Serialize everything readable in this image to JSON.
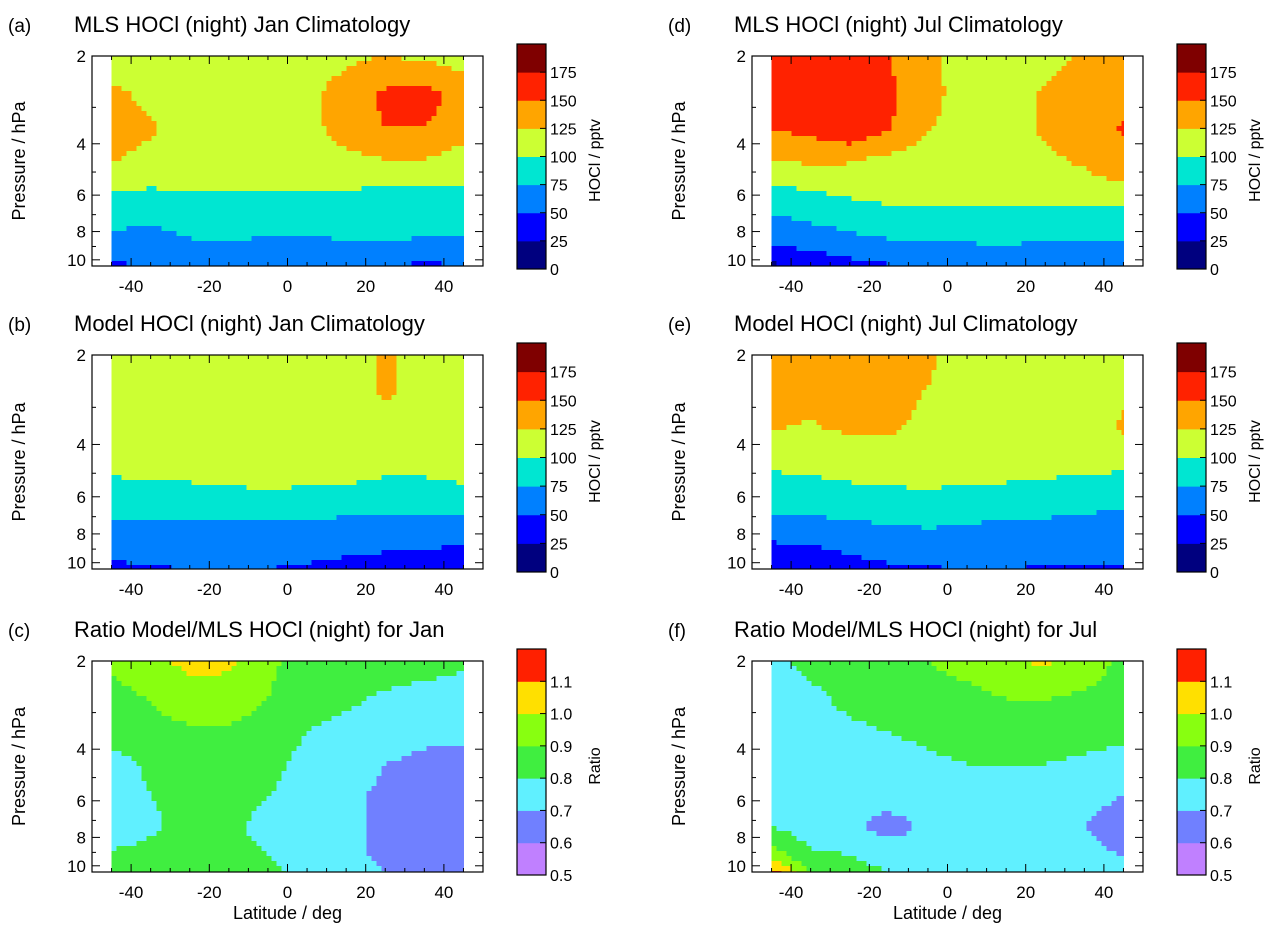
{
  "colorbars": {
    "hocl": {
      "title": "HOCl / pptv",
      "labels": [
        "0",
        "25",
        "50",
        "75",
        "100",
        "125",
        "150",
        "175"
      ],
      "colors": [
        "#00007f",
        "#0000ff",
        "#0080ff",
        "#00e6d2",
        "#ccff33",
        "#ffa500",
        "#ff2200",
        "#7f0000"
      ]
    },
    "ratio": {
      "title": "Ratio",
      "labels": [
        "0.5",
        "0.6",
        "0.7",
        "0.8",
        "0.9",
        "1.0",
        "1.1"
      ],
      "colors": [
        "#c080ff",
        "#7080ff",
        "#60f0ff",
        "#40ee40",
        "#88ff10",
        "#ffe000",
        "#ff2000"
      ]
    }
  },
  "chart_data": [
    {
      "type": "heatmap",
      "panel": "(a)",
      "title": "MLS HOCl (night) Jan Climatology",
      "ylabel": "Pressure / hPa",
      "xlabel": "",
      "colorbar": "hocl",
      "x_ticks": [
        -40,
        -20,
        0,
        20,
        40
      ],
      "y_ticks": [
        2,
        4,
        6,
        8,
        10
      ],
      "xlim": [
        -50,
        50
      ],
      "ylim": [
        10.5,
        2
      ],
      "y_scale": "log",
      "latitudes": [
        -45,
        -35,
        -25,
        -15,
        -5,
        5,
        15,
        25,
        35,
        45
      ],
      "pressures": [
        2,
        2.7,
        3.5,
        4.5,
        5.8,
        7.3,
        9.2,
        10.5
      ],
      "values": [
        [
          110,
          110,
          110,
          110,
          110,
          115,
          120,
          125,
          120,
          115
        ],
        [
          130,
          120,
          110,
          110,
          110,
          120,
          135,
          155,
          160,
          140
        ],
        [
          130,
          128,
          112,
          110,
          110,
          118,
          135,
          150,
          150,
          135
        ],
        [
          127,
          120,
          110,
          110,
          110,
          110,
          120,
          125,
          125,
          115
        ],
        [
          100,
          98,
          100,
          100,
          100,
          100,
          100,
          95,
          95,
          95
        ],
        [
          80,
          78,
          86,
          90,
          88,
          90,
          85,
          85,
          80,
          80
        ],
        [
          65,
          60,
          68,
          68,
          64,
          63,
          70,
          72,
          70,
          70
        ],
        [
          45,
          52,
          52,
          52,
          52,
          52,
          52,
          48,
          45,
          48
        ]
      ]
    },
    {
      "type": "heatmap",
      "panel": "(b)",
      "title": "Model HOCl (night) Jan Climatology",
      "ylabel": "Pressure / hPa",
      "xlabel": "",
      "colorbar": "hocl",
      "x_ticks": [
        -40,
        -20,
        0,
        20,
        40
      ],
      "y_ticks": [
        2,
        4,
        6,
        8,
        10
      ],
      "xlim": [
        -50,
        50
      ],
      "ylim": [
        10.5,
        2
      ],
      "y_scale": "log",
      "latitudes": [
        -45,
        -35,
        -25,
        -15,
        -5,
        5,
        15,
        25,
        35,
        45
      ],
      "pressures": [
        2,
        2.7,
        3.5,
        4.5,
        5.8,
        7.3,
        9.2,
        10.5
      ],
      "values": [
        [
          112,
          112,
          112,
          112,
          112,
          112,
          115,
          128,
          115,
          112
        ],
        [
          112,
          112,
          112,
          112,
          112,
          112,
          115,
          128,
          115,
          112
        ],
        [
          110,
          110,
          110,
          110,
          110,
          110,
          110,
          115,
          110,
          110
        ],
        [
          105,
          106,
          110,
          112,
          120,
          118,
          113,
          108,
          108,
          112
        ],
        [
          95,
          95,
          95,
          96,
          98,
          95,
          95,
          92,
          92,
          95
        ],
        [
          75,
          74,
          74,
          74,
          74,
          74,
          70,
          70,
          68,
          66
        ],
        [
          55,
          58,
          58,
          57,
          56,
          54,
          52,
          50,
          48,
          45
        ],
        [
          45,
          48,
          50,
          50,
          50,
          48,
          45,
          40,
          38,
          35
        ]
      ]
    },
    {
      "type": "heatmap",
      "panel": "(c)",
      "title": "Ratio Model/MLS HOCl (night) for Jan",
      "ylabel": "Pressure / hPa",
      "xlabel": "Latitude / deg",
      "colorbar": "ratio",
      "x_ticks": [
        -40,
        -20,
        0,
        20,
        40
      ],
      "y_ticks": [
        2,
        4,
        6,
        8,
        10
      ],
      "xlim": [
        -50,
        50
      ],
      "ylim": [
        10.5,
        2
      ],
      "y_scale": "log",
      "latitudes": [
        -45,
        -35,
        -25,
        -15,
        -5,
        5,
        15,
        25,
        35,
        45
      ],
      "pressures": [
        2,
        2.7,
        3.5,
        4.5,
        5.8,
        7.3,
        9.2,
        10.5
      ],
      "values": [
        [
          0.92,
          0.98,
          1.02,
          1.02,
          0.92,
          0.86,
          0.86,
          0.85,
          0.84,
          0.82
        ],
        [
          0.86,
          0.9,
          0.96,
          0.95,
          0.9,
          0.84,
          0.82,
          0.78,
          0.76,
          0.74
        ],
        [
          0.84,
          0.87,
          0.88,
          0.88,
          0.86,
          0.8,
          0.76,
          0.74,
          0.72,
          0.72
        ],
        [
          0.76,
          0.82,
          0.86,
          0.86,
          0.84,
          0.76,
          0.74,
          0.7,
          0.68,
          0.66
        ],
        [
          0.72,
          0.8,
          0.84,
          0.84,
          0.8,
          0.74,
          0.72,
          0.68,
          0.66,
          0.64
        ],
        [
          0.72,
          0.78,
          0.84,
          0.83,
          0.76,
          0.72,
          0.72,
          0.68,
          0.65,
          0.64
        ],
        [
          0.82,
          0.84,
          0.85,
          0.84,
          0.8,
          0.76,
          0.72,
          0.68,
          0.65,
          0.64
        ],
        [
          0.84,
          0.84,
          0.85,
          0.85,
          0.82,
          0.78,
          0.74,
          0.7,
          0.65,
          0.64
        ]
      ]
    },
    {
      "type": "heatmap",
      "panel": "(d)",
      "title": "MLS HOCl (night) Jul Climatology",
      "ylabel": "Pressure / hPa",
      "xlabel": "",
      "colorbar": "hocl",
      "x_ticks": [
        -40,
        -20,
        0,
        20,
        40
      ],
      "y_ticks": [
        2,
        4,
        6,
        8,
        10
      ],
      "xlim": [
        -50,
        50
      ],
      "ylim": [
        10.5,
        2
      ],
      "y_scale": "log",
      "latitudes": [
        -45,
        -35,
        -25,
        -15,
        -5,
        5,
        15,
        25,
        35,
        45
      ],
      "pressures": [
        2,
        2.7,
        3.5,
        4.5,
        5.8,
        7.3,
        9.2,
        10.5
      ],
      "values": [
        [
          155,
          158,
          155,
          150,
          130,
          112,
          110,
          118,
          128,
          125
        ],
        [
          155,
          160,
          165,
          155,
          135,
          112,
          112,
          128,
          135,
          140
        ],
        [
          152,
          158,
          172,
          152,
          128,
          110,
          112,
          130,
          140,
          152
        ],
        [
          125,
          130,
          128,
          120,
          110,
          108,
          110,
          120,
          130,
          145
        ],
        [
          92,
          100,
          105,
          108,
          108,
          106,
          108,
          110,
          112,
          118
        ],
        [
          70,
          78,
          84,
          90,
          92,
          92,
          90,
          88,
          88,
          85
        ],
        [
          45,
          52,
          60,
          66,
          68,
          70,
          72,
          70,
          70,
          70
        ],
        [
          20,
          30,
          40,
          48,
          52,
          55,
          55,
          52,
          50,
          50
        ]
      ]
    },
    {
      "type": "heatmap",
      "panel": "(e)",
      "title": "Model HOCl (night) Jul Climatology",
      "ylabel": "Pressure / hPa",
      "xlabel": "",
      "colorbar": "hocl",
      "x_ticks": [
        -40,
        -20,
        0,
        20,
        40
      ],
      "y_ticks": [
        2,
        4,
        6,
        8,
        10
      ],
      "xlim": [
        -50,
        50
      ],
      "ylim": [
        10.5,
        2
      ],
      "y_scale": "log",
      "latitudes": [
        -45,
        -35,
        -25,
        -15,
        -5,
        5,
        15,
        25,
        35,
        45
      ],
      "pressures": [
        2,
        2.7,
        3.5,
        4.5,
        5.8,
        7.3,
        9.2,
        10.5
      ],
      "values": [
        [
          130,
          130,
          130,
          130,
          128,
          118,
          115,
          115,
          115,
          115
        ],
        [
          128,
          128,
          132,
          132,
          124,
          116,
          115,
          115,
          116,
          122
        ],
        [
          126,
          124,
          128,
          128,
          120,
          114,
          112,
          112,
          114,
          128
        ],
        [
          106,
          108,
          112,
          116,
          114,
          114,
          112,
          110,
          108,
          108
        ],
        [
          88,
          90,
          94,
          96,
          98,
          96,
          94,
          92,
          88,
          85
        ],
        [
          68,
          70,
          74,
          76,
          78,
          76,
          74,
          72,
          70,
          66
        ],
        [
          40,
          44,
          52,
          58,
          62,
          62,
          60,
          58,
          56,
          55
        ],
        [
          25,
          32,
          40,
          45,
          48,
          50,
          50,
          48,
          48,
          48
        ]
      ]
    },
    {
      "type": "heatmap",
      "panel": "(f)",
      "title": "Ratio Model/MLS HOCl (night) for Jul",
      "ylabel": "Pressure / hPa",
      "xlabel": "Latitude / deg",
      "colorbar": "ratio",
      "x_ticks": [
        -40,
        -20,
        0,
        20,
        40
      ],
      "y_ticks": [
        2,
        4,
        6,
        8,
        10
      ],
      "xlim": [
        -50,
        50
      ],
      "ylim": [
        10.5,
        2
      ],
      "y_scale": "log",
      "latitudes": [
        -45,
        -35,
        -25,
        -15,
        -5,
        5,
        15,
        25,
        35,
        45
      ],
      "pressures": [
        2,
        2.7,
        3.5,
        4.5,
        5.8,
        7.3,
        9.2,
        10.5
      ],
      "values": [
        [
          0.78,
          0.82,
          0.84,
          0.87,
          0.9,
          0.94,
          0.98,
          1.02,
          0.95,
          0.88
        ],
        [
          0.76,
          0.78,
          0.82,
          0.85,
          0.86,
          0.86,
          0.9,
          0.9,
          0.88,
          0.86
        ],
        [
          0.75,
          0.76,
          0.78,
          0.8,
          0.82,
          0.84,
          0.85,
          0.85,
          0.84,
          0.82
        ],
        [
          0.74,
          0.75,
          0.76,
          0.76,
          0.78,
          0.8,
          0.8,
          0.8,
          0.78,
          0.76
        ],
        [
          0.72,
          0.74,
          0.74,
          0.74,
          0.74,
          0.74,
          0.74,
          0.73,
          0.72,
          0.7
        ],
        [
          0.8,
          0.74,
          0.72,
          0.66,
          0.72,
          0.74,
          0.74,
          0.72,
          0.7,
          0.66
        ],
        [
          0.95,
          0.82,
          0.8,
          0.76,
          0.74,
          0.74,
          0.74,
          0.73,
          0.72,
          0.7
        ],
        [
          1.15,
          0.9,
          0.84,
          0.8,
          0.76,
          0.74,
          0.73,
          0.72,
          0.72,
          0.7
        ]
      ]
    }
  ]
}
